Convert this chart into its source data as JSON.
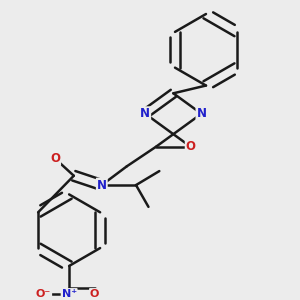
{
  "background_color": "#ececec",
  "bond_color": "#1a1a1a",
  "atom_colors": {
    "N": "#2020cc",
    "O": "#cc2020",
    "C": "#1a1a1a"
  },
  "bond_width": 1.8,
  "figsize": [
    3.0,
    3.0
  ],
  "dpi": 100
}
